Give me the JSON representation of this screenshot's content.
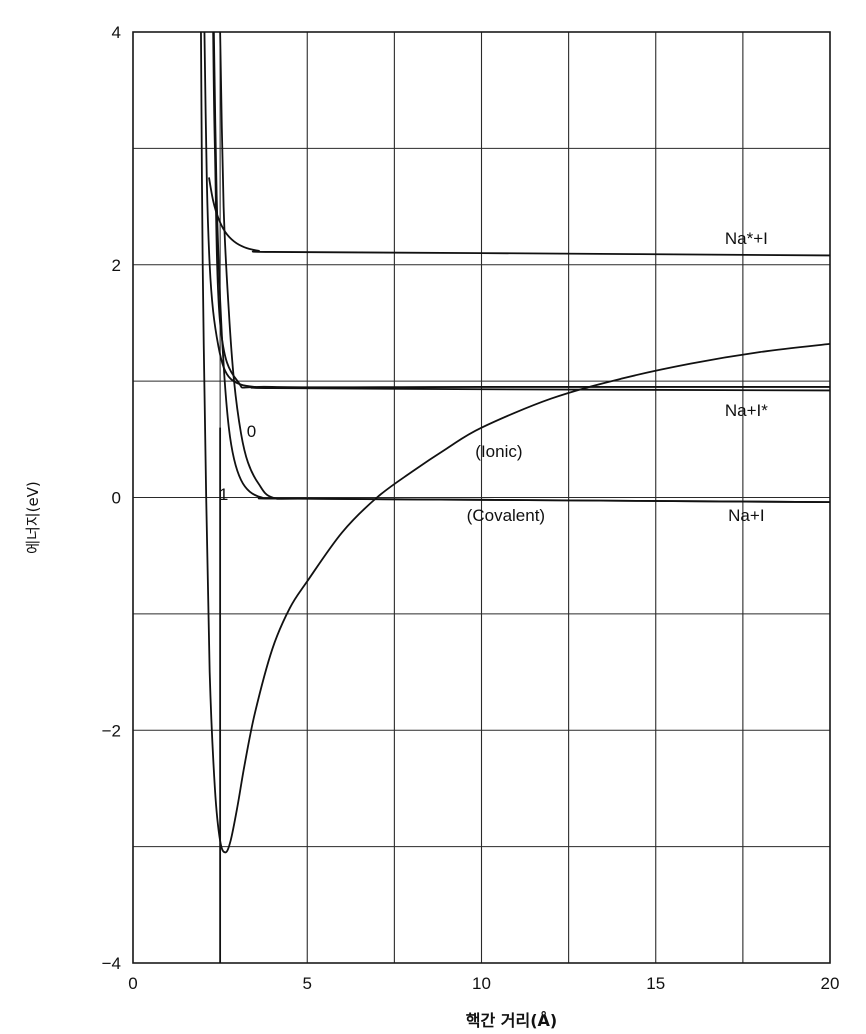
{
  "chart_data": {
    "type": "line",
    "xlabel": "핵간 거리(Å)",
    "ylabel": "에너지(eV)",
    "xlim": [
      0,
      20
    ],
    "ylim": [
      -4,
      4
    ],
    "xticks": [
      "0",
      "5",
      "10",
      "15",
      "20"
    ],
    "yticks": [
      "4",
      "2",
      "0",
      "−2",
      "−4"
    ],
    "grid": true,
    "series": [
      {
        "x": [
          1.95,
          2.0,
          2.1,
          2.2,
          2.35,
          2.5,
          2.65,
          2.8,
          3.0,
          3.2,
          3.5,
          4.0,
          4.5,
          5.0,
          6.0,
          7.0,
          8.0,
          9.0,
          10.0,
          12.0,
          14.0,
          16.0,
          18.0,
          20.0
        ],
        "y": [
          4.0,
          2.0,
          0.0,
          -1.5,
          -2.5,
          -2.95,
          -3.05,
          -2.95,
          -2.65,
          -2.3,
          -1.85,
          -1.3,
          -0.95,
          -0.72,
          -0.3,
          0.0,
          0.22,
          0.42,
          0.6,
          0.85,
          1.02,
          1.15,
          1.25,
          1.32
        ]
      },
      {
        "x": [
          2.5,
          2.6,
          2.75,
          2.9,
          3.1,
          3.3,
          3.6,
          4.0,
          5.0,
          10.0,
          15.0,
          20.0
        ],
        "y": [
          4.0,
          2.5,
          1.6,
          1.0,
          0.55,
          0.3,
          0.12,
          0.0,
          -0.01,
          -0.02,
          -0.03,
          -0.04
        ]
      },
      {
        "x": [
          2.32,
          2.4,
          2.5,
          2.62,
          2.75,
          2.9,
          3.1,
          3.35,
          3.7,
          4.2,
          10.0,
          20.0
        ],
        "y": [
          4.0,
          2.6,
          1.7,
          1.05,
          0.6,
          0.33,
          0.15,
          0.05,
          0.0,
          -0.01,
          -0.02,
          -0.04
        ]
      },
      {
        "x": [
          2.05,
          2.12,
          2.2,
          2.3,
          2.45,
          2.6,
          2.8,
          3.1,
          3.5,
          4.0,
          10.0,
          20.0
        ],
        "y": [
          4.0,
          2.7,
          2.0,
          1.6,
          1.3,
          1.12,
          1.02,
          0.97,
          0.95,
          0.94,
          0.93,
          0.92
        ]
      },
      {
        "x": [
          2.3,
          2.35,
          2.5,
          3.0,
          4.0,
          10.0,
          20.0
        ],
        "y": [
          4.0,
          3.0,
          1.5,
          1.0,
          0.95,
          0.95,
          0.95
        ]
      },
      {
        "x": [
          2.18,
          2.3,
          2.45,
          2.65,
          2.9,
          3.2,
          3.6,
          4.0,
          10.0,
          20.0
        ],
        "y": [
          2.75,
          2.55,
          2.4,
          2.28,
          2.2,
          2.15,
          2.12,
          2.11,
          2.1,
          2.08
        ]
      }
    ],
    "vertical_line": {
      "x": 2.5,
      "ymin": -4,
      "ymax": 0.6
    },
    "annotations": [
      {
        "text": "Na*+I",
        "x": 17.6,
        "y": 2.18
      },
      {
        "text": "Na+I*",
        "x": 17.6,
        "y": 0.7
      },
      {
        "text": "Na+I",
        "x": 17.6,
        "y": -0.2
      },
      {
        "text": "(Ionic)",
        "x": 10.5,
        "y": 0.35
      },
      {
        "text": "(Covalent)",
        "x": 10.7,
        "y": -0.2
      },
      {
        "text": "0",
        "x": 3.4,
        "y": 0.52
      },
      {
        "text": "1",
        "x": 2.6,
        "y": -0.02
      }
    ]
  }
}
